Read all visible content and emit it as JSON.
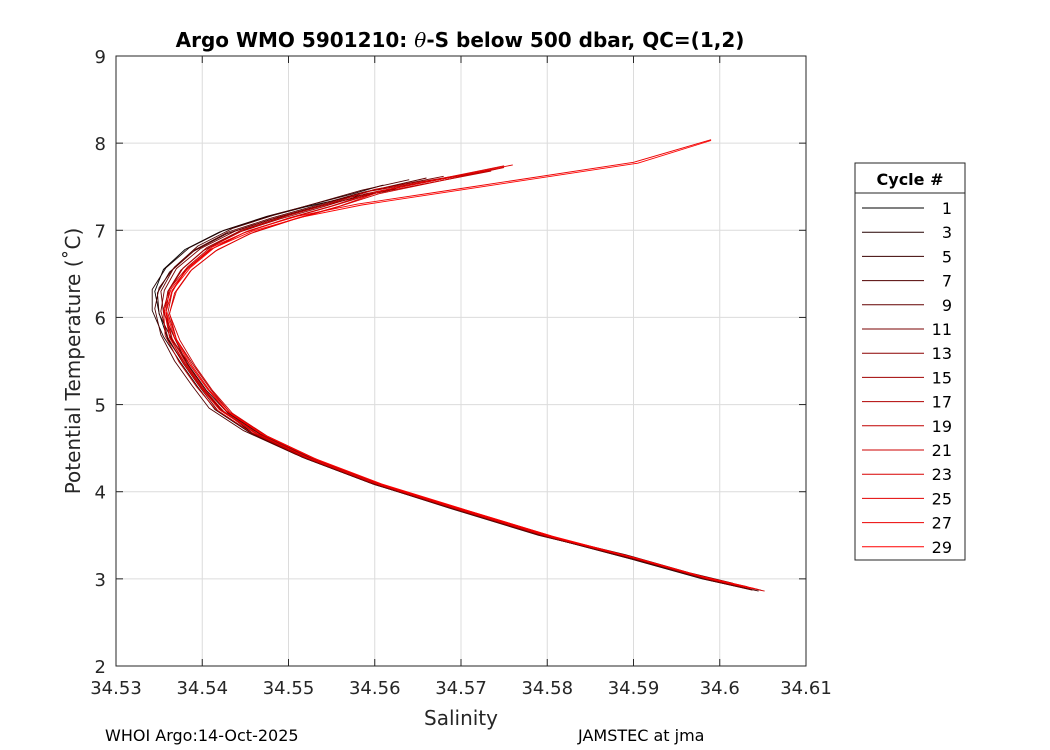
{
  "chart_data": {
    "type": "line",
    "title_prefix": "Argo WMO 5901210: ",
    "title_theta": "θ",
    "title_suffix": "-S below 500 dbar,  QC=(1,2)",
    "xlabel": "Salinity",
    "ylabel": "Potential Temperature (˚C)",
    "xlim": [
      34.53,
      34.61
    ],
    "ylim": [
      2,
      9
    ],
    "xticks": [
      34.53,
      34.54,
      34.55,
      34.56,
      34.57,
      34.58,
      34.59,
      34.6,
      34.61
    ],
    "xtick_labels": [
      "34.53",
      "34.54",
      "34.55",
      "34.56",
      "34.57",
      "34.58",
      "34.59",
      "34.6",
      "34.61"
    ],
    "yticks": [
      2,
      3,
      4,
      5,
      6,
      7,
      8,
      9
    ],
    "ytick_labels": [
      "2",
      "3",
      "4",
      "5",
      "6",
      "7",
      "8",
      "9"
    ],
    "grid": true,
    "legend_title": "Cycle #",
    "legend_placement": "outside-right",
    "series": [
      {
        "name": "1",
        "color": "#000000",
        "x": [
          34.6035,
          34.598,
          34.59,
          34.58,
          34.57,
          34.56,
          34.552,
          34.546,
          34.5425,
          34.54,
          34.538,
          34.536,
          34.535,
          34.5345,
          34.5355,
          34.538,
          34.542,
          34.547,
          34.552,
          34.557,
          34.5615
        ],
        "y": [
          2.88,
          3.0,
          3.22,
          3.48,
          3.78,
          4.08,
          4.38,
          4.66,
          4.92,
          5.18,
          5.45,
          5.75,
          6.05,
          6.3,
          6.55,
          6.78,
          6.98,
          7.14,
          7.27,
          7.38,
          7.45
        ]
      },
      {
        "name": "3",
        "color": "#230000",
        "x": [
          34.6025,
          34.597,
          34.5895,
          34.579,
          34.569,
          34.5595,
          34.5515,
          34.5455,
          34.5415,
          34.5395,
          34.5375,
          34.5355,
          34.5342,
          34.5342,
          34.5358,
          34.5385,
          34.5425,
          34.5475,
          34.5525,
          34.5575,
          34.561
        ],
        "y": [
          2.92,
          3.04,
          3.25,
          3.5,
          3.8,
          4.1,
          4.4,
          4.68,
          4.94,
          5.2,
          5.48,
          5.78,
          6.08,
          6.32,
          6.57,
          6.8,
          7.0,
          7.16,
          7.29,
          7.42,
          7.52
        ]
      },
      {
        "name": "5",
        "color": "#3a0000",
        "x": [
          34.6045,
          34.599,
          34.591,
          34.581,
          34.571,
          34.561,
          34.553,
          34.547,
          34.543,
          34.5405,
          34.5385,
          34.5365,
          34.535,
          34.5348,
          34.5362,
          34.539,
          34.5428,
          34.5478,
          34.553,
          34.558,
          34.5625
        ],
        "y": [
          2.86,
          2.98,
          3.2,
          3.46,
          3.76,
          4.06,
          4.36,
          4.64,
          4.9,
          5.16,
          5.44,
          5.74,
          6.04,
          6.28,
          6.52,
          6.76,
          6.96,
          7.12,
          7.26,
          7.38,
          7.48
        ]
      },
      {
        "name": "7",
        "color": "#500000",
        "x": [
          34.6015,
          34.5965,
          34.589,
          34.5785,
          34.5685,
          34.5588,
          34.5508,
          34.5448,
          34.5408,
          34.5388,
          34.5368,
          34.5352,
          34.5345,
          34.535,
          34.5368,
          34.5395,
          34.5435,
          34.5485,
          34.5535,
          34.5585,
          34.564
        ],
        "y": [
          2.95,
          3.07,
          3.28,
          3.53,
          3.83,
          4.13,
          4.43,
          4.7,
          4.96,
          5.22,
          5.5,
          5.8,
          6.1,
          6.34,
          6.58,
          6.82,
          7.02,
          7.18,
          7.32,
          7.46,
          7.58
        ]
      },
      {
        "name": "9",
        "color": "#640000",
        "x": [
          34.6038,
          34.5985,
          34.5905,
          34.5805,
          34.5705,
          34.5605,
          34.5525,
          34.5465,
          34.5425,
          34.5403,
          34.5383,
          34.5368,
          34.5355,
          34.5352,
          34.5366,
          34.5392,
          34.543,
          34.548,
          34.553,
          34.558,
          34.566
        ],
        "y": [
          2.87,
          2.99,
          3.21,
          3.47,
          3.77,
          4.07,
          4.37,
          4.65,
          4.91,
          5.17,
          5.46,
          5.76,
          6.06,
          6.3,
          6.55,
          6.78,
          6.98,
          7.14,
          7.28,
          7.42,
          7.6
        ]
      },
      {
        "name": "11",
        "color": "#780000",
        "x": [
          34.6028,
          34.5975,
          34.5898,
          34.5795,
          34.5695,
          34.5598,
          34.5518,
          34.5458,
          34.5418,
          34.5398,
          34.5378,
          34.536,
          34.5352,
          34.5356,
          34.537,
          34.5398,
          34.5438,
          34.5488,
          34.5538,
          34.5588,
          34.568
        ],
        "y": [
          2.9,
          3.02,
          3.24,
          3.49,
          3.79,
          4.09,
          4.39,
          4.67,
          4.93,
          5.19,
          5.47,
          5.77,
          6.07,
          6.31,
          6.56,
          6.79,
          6.99,
          7.15,
          7.29,
          7.44,
          7.62
        ]
      },
      {
        "name": "13",
        "color": "#8c0000",
        "x": [
          34.6042,
          34.5988,
          34.5908,
          34.5808,
          34.5708,
          34.5608,
          34.5528,
          34.5468,
          34.5428,
          34.5406,
          34.5386,
          34.5365,
          34.5356,
          34.536,
          34.5375,
          34.5402,
          34.544,
          34.549,
          34.554,
          34.559,
          34.5705
        ],
        "y": [
          2.88,
          3.0,
          3.22,
          3.48,
          3.78,
          4.08,
          4.38,
          4.66,
          4.92,
          5.18,
          5.45,
          5.75,
          6.05,
          6.3,
          6.54,
          6.77,
          6.97,
          7.13,
          7.27,
          7.42,
          7.64
        ]
      },
      {
        "name": "15",
        "color": "#a00000",
        "x": [
          34.6032,
          34.5978,
          34.59,
          34.58,
          34.57,
          34.5602,
          34.5522,
          34.5462,
          34.5422,
          34.54,
          34.538,
          34.5362,
          34.5358,
          34.5362,
          34.5378,
          34.5405,
          34.5445,
          34.5495,
          34.5545,
          34.5595,
          34.572
        ],
        "y": [
          2.91,
          3.03,
          3.24,
          3.49,
          3.79,
          4.09,
          4.39,
          4.67,
          4.93,
          5.19,
          5.47,
          5.77,
          6.07,
          6.32,
          6.57,
          6.8,
          7.0,
          7.16,
          7.3,
          7.45,
          7.66
        ]
      },
      {
        "name": "17",
        "color": "#b00000",
        "x": [
          34.6048,
          34.5992,
          34.5912,
          34.5812,
          34.5712,
          34.5612,
          34.5532,
          34.5472,
          34.5432,
          34.541,
          34.539,
          34.537,
          34.536,
          34.5365,
          34.538,
          34.5408,
          34.5448,
          34.5498,
          34.5548,
          34.5598,
          34.5735
        ],
        "y": [
          2.87,
          2.99,
          3.21,
          3.47,
          3.77,
          4.07,
          4.37,
          4.65,
          4.91,
          5.17,
          5.45,
          5.75,
          6.05,
          6.29,
          6.54,
          6.77,
          6.97,
          7.13,
          7.27,
          7.42,
          7.68
        ]
      },
      {
        "name": "19",
        "color": "#c00000",
        "x": [
          34.6022,
          34.597,
          34.5893,
          34.5792,
          34.5692,
          34.5595,
          34.5515,
          34.5455,
          34.5415,
          34.5393,
          34.5373,
          34.5357,
          34.5355,
          34.5362,
          34.5383,
          34.541,
          34.545,
          34.55,
          34.555,
          34.56,
          34.574
        ],
        "y": [
          2.93,
          3.05,
          3.26,
          3.51,
          3.81,
          4.11,
          4.41,
          4.69,
          4.95,
          5.21,
          5.49,
          5.79,
          6.09,
          6.33,
          6.58,
          6.81,
          7.01,
          7.17,
          7.31,
          7.47,
          7.7
        ]
      },
      {
        "name": "21",
        "color": "#cc0000",
        "x": [
          34.6052,
          34.5995,
          34.5915,
          34.5815,
          34.5715,
          34.5615,
          34.5535,
          34.5475,
          34.5435,
          34.5412,
          34.5392,
          34.5374,
          34.5362,
          34.5368,
          34.5386,
          34.5415,
          34.5455,
          34.5505,
          34.5555,
          34.5605,
          34.575
        ],
        "y": [
          2.86,
          2.98,
          3.2,
          3.46,
          3.76,
          4.06,
          4.36,
          4.64,
          4.9,
          5.16,
          5.44,
          5.74,
          6.04,
          6.28,
          6.53,
          6.76,
          6.96,
          7.12,
          7.26,
          7.42,
          7.72
        ]
      },
      {
        "name": "23",
        "color": "#d80000",
        "x": [
          34.6036,
          34.5982,
          34.5903,
          34.5803,
          34.5703,
          34.5605,
          34.5525,
          34.5465,
          34.5425,
          34.5402,
          34.5382,
          34.5365,
          34.5358,
          34.5365,
          34.5382,
          34.541,
          34.545,
          34.55,
          34.555,
          34.56,
          34.575
        ],
        "y": [
          2.89,
          3.01,
          3.23,
          3.48,
          3.78,
          4.08,
          4.38,
          4.66,
          4.92,
          5.18,
          5.46,
          5.76,
          6.06,
          6.31,
          6.55,
          6.78,
          6.98,
          7.14,
          7.28,
          7.44,
          7.74
        ]
      },
      {
        "name": "25",
        "color": "#e20000",
        "x": [
          34.6044,
          34.599,
          34.591,
          34.581,
          34.571,
          34.5612,
          34.5532,
          34.5472,
          34.5432,
          34.5408,
          34.5388,
          34.537,
          34.5362,
          34.537,
          34.5388,
          34.5418,
          34.546,
          34.551,
          34.556,
          34.5608,
          34.576
        ],
        "y": [
          2.88,
          3.0,
          3.22,
          3.47,
          3.77,
          4.07,
          4.37,
          4.65,
          4.91,
          5.17,
          5.45,
          5.75,
          6.05,
          6.3,
          6.55,
          6.78,
          6.98,
          7.14,
          7.28,
          7.45,
          7.75
        ]
      },
      {
        "name": "27",
        "color": "#ec0000",
        "x": [
          34.6026,
          34.5974,
          34.5897,
          34.5797,
          34.5698,
          34.56,
          34.552,
          34.546,
          34.542,
          34.5398,
          34.5378,
          34.5362,
          34.5356,
          34.5364,
          34.5385,
          34.5412,
          34.5455,
          34.551,
          34.558,
          34.57,
          34.59,
          34.599
        ],
        "y": [
          2.92,
          3.04,
          3.25,
          3.5,
          3.8,
          4.1,
          4.4,
          4.68,
          4.94,
          5.2,
          5.48,
          5.78,
          6.08,
          6.33,
          6.58,
          6.81,
          7.0,
          7.16,
          7.3,
          7.48,
          7.78,
          8.04
        ]
      },
      {
        "name": "29",
        "color": "#ff0000",
        "x": [
          34.604,
          34.5986,
          34.5906,
          34.5806,
          34.5706,
          34.5608,
          34.5528,
          34.5468,
          34.5428,
          34.5405,
          34.5385,
          34.5368,
          34.5358,
          34.5366,
          34.5386,
          34.5414,
          34.5458,
          34.5515,
          34.5585,
          34.5705,
          34.5905,
          34.599
        ],
        "y": [
          2.89,
          3.01,
          3.23,
          3.49,
          3.79,
          4.09,
          4.39,
          4.67,
          4.93,
          5.19,
          5.47,
          5.77,
          6.07,
          6.32,
          6.57,
          6.8,
          6.99,
          7.15,
          7.29,
          7.47,
          7.77,
          8.03
        ]
      }
    ]
  },
  "footer": {
    "left": "WHOI Argo:14-Oct-2025",
    "right": "JAMSTEC at jma"
  }
}
